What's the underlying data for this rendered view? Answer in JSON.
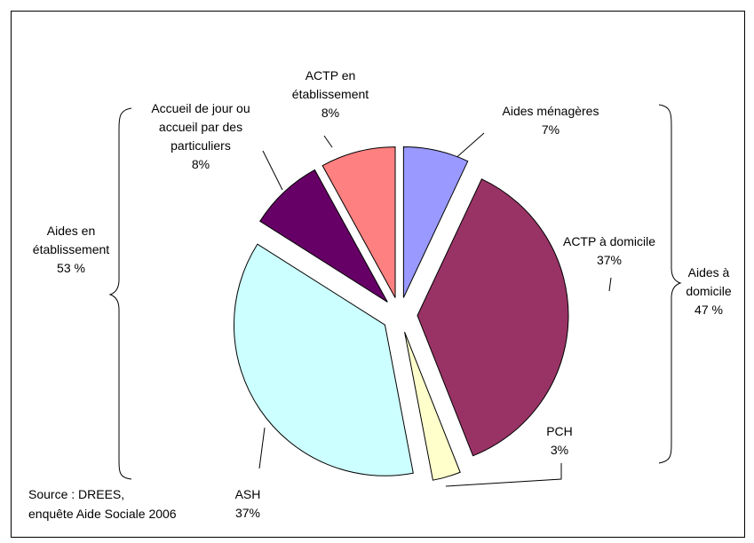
{
  "chart_data": {
    "type": "pie",
    "categories": [
      "Aides ménagères",
      "ACTP à domicile",
      "PCH",
      "ASH",
      "Accueil de jour ou accueil par des particuliers",
      "ACTP en établissement"
    ],
    "values": [
      7,
      37,
      3,
      37,
      8,
      8
    ],
    "value_labels": [
      "7%",
      "37%",
      "3%",
      "37%",
      "8%",
      "8%"
    ],
    "colors": [
      "#9999ff",
      "#993366",
      "#ffffcc",
      "#ccffff",
      "#660066",
      "#ff8080"
    ],
    "annotations": [
      {
        "text": "Aides en établissement",
        "value_label": "53 %"
      },
      {
        "text": "Aides à domicile",
        "value_label": "47 %"
      }
    ],
    "source": [
      "Source : DREES,",
      "enquête Aide Sociale 2006"
    ]
  }
}
